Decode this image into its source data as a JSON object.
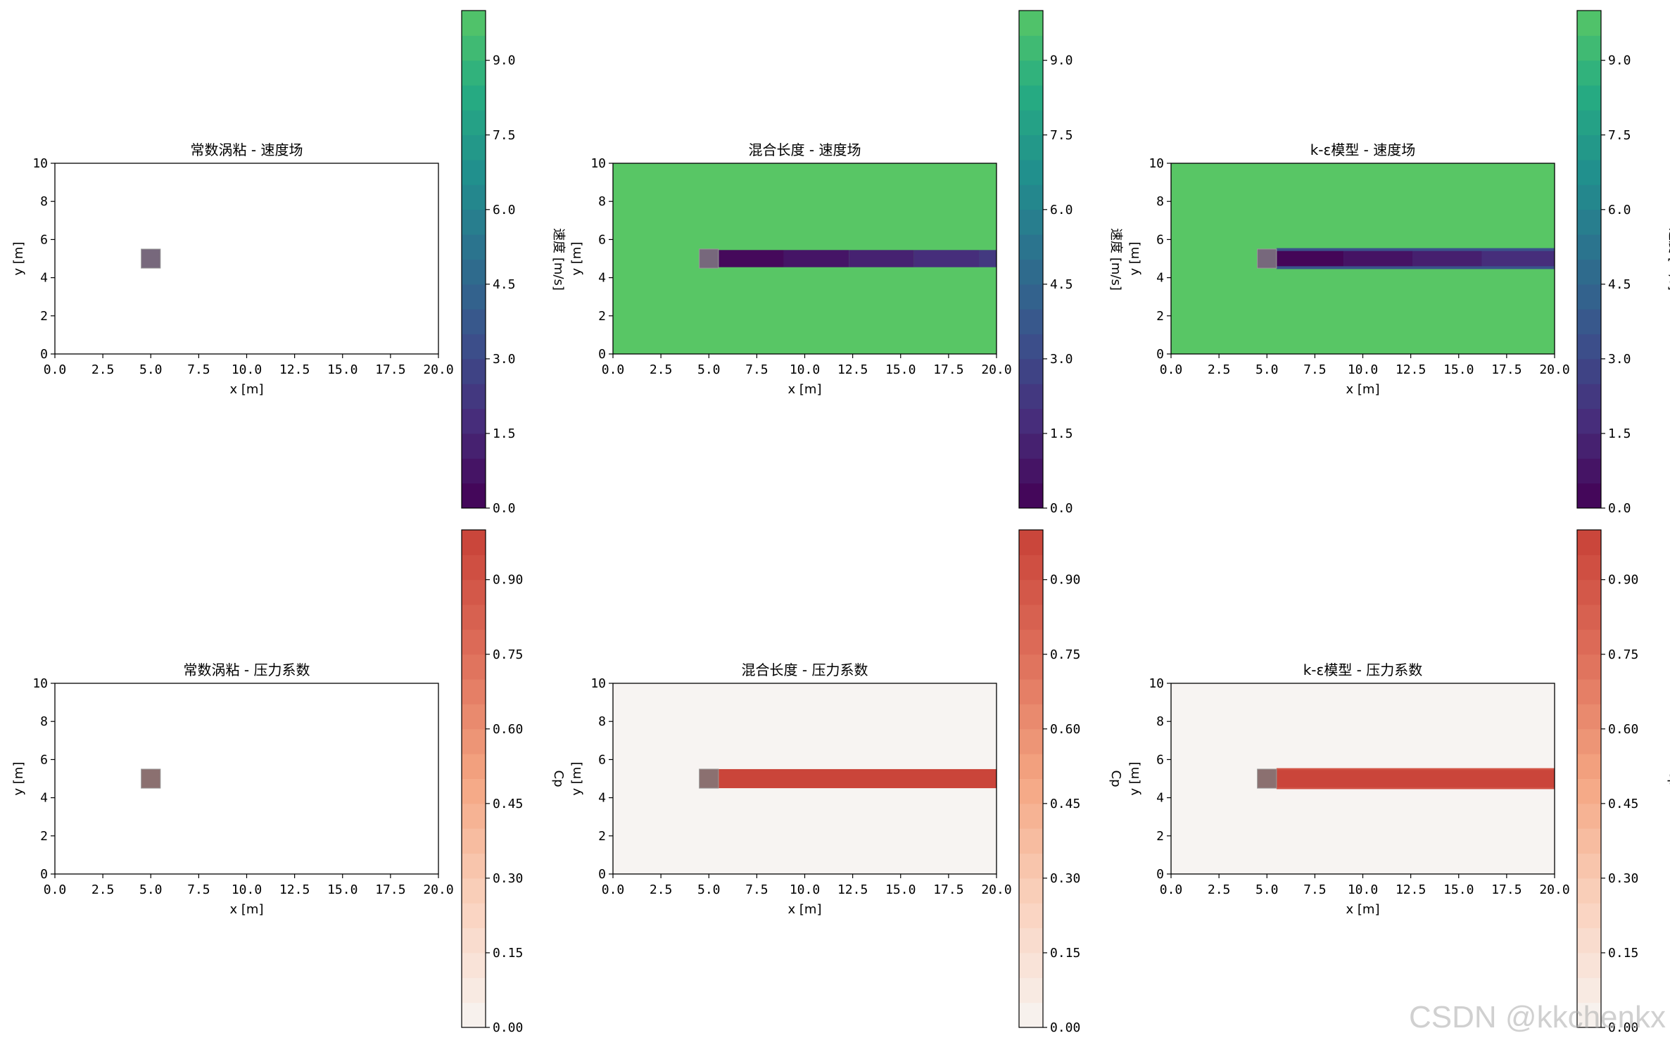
{
  "watermark": "CSDN @kkchenkx",
  "panels_meta": {
    "velocity_colorbar": {
      "label": "速度 [m/s]",
      "ticks": [
        "0.0",
        "1.5",
        "3.0",
        "4.5",
        "6.0",
        "7.5",
        "9.0"
      ],
      "range": [
        0,
        10
      ],
      "levels": 20,
      "colormap": "viridis"
    },
    "pressure_colorbar": {
      "label": "Cp",
      "ticks": [
        "0.00",
        "0.15",
        "0.30",
        "0.45",
        "0.60",
        "0.75",
        "0.90"
      ],
      "range": [
        0,
        1
      ],
      "levels": 20,
      "colormap": "reds"
    }
  },
  "chart_data": [
    {
      "type": "heatmap",
      "title": "常数涡粘 - 速度场",
      "xlabel": "x [m]",
      "ylabel": "y [m]",
      "xlim": [
        0,
        20
      ],
      "ylim": [
        0,
        10
      ],
      "xticks": [
        "0.0",
        "2.5",
        "5.0",
        "7.5",
        "10.0",
        "12.5",
        "15.0",
        "17.5",
        "20.0"
      ],
      "yticks": [
        "0",
        "2",
        "4",
        "6",
        "8",
        "10"
      ],
      "field": "velocity",
      "background_value": null,
      "obstacle": {
        "x": [
          4.5,
          5.5
        ],
        "y": [
          4.5,
          5.5
        ]
      },
      "wake": []
    },
    {
      "type": "heatmap",
      "title": "混合长度 - 速度场",
      "xlabel": "x [m]",
      "ylabel": "y [m]",
      "xlim": [
        0,
        20
      ],
      "ylim": [
        0,
        10
      ],
      "xticks": [
        "0.0",
        "2.5",
        "5.0",
        "7.5",
        "10.0",
        "12.5",
        "15.0",
        "17.5",
        "20.0"
      ],
      "yticks": [
        "0",
        "2",
        "4",
        "6",
        "8",
        "10"
      ],
      "field": "velocity",
      "background_value": 10,
      "obstacle": {
        "x": [
          4.5,
          5.5
        ],
        "y": [
          4.5,
          5.5
        ]
      },
      "wake": [
        {
          "x": [
            5.5,
            8.9
          ],
          "y": [
            4.55,
            5.45
          ],
          "value": 0.3
        },
        {
          "x": [
            8.9,
            12.3
          ],
          "y": [
            4.55,
            5.45
          ],
          "value": 0.8
        },
        {
          "x": [
            12.3,
            15.7
          ],
          "y": [
            4.55,
            5.45
          ],
          "value": 1.3
        },
        {
          "x": [
            15.7,
            19.1
          ],
          "y": [
            4.55,
            5.45
          ],
          "value": 1.8
        },
        {
          "x": [
            19.1,
            20
          ],
          "y": [
            4.55,
            5.45
          ],
          "value": 2.3
        }
      ]
    },
    {
      "type": "heatmap",
      "title": "k-ε模型 - 速度场",
      "xlabel": "x [m]",
      "ylabel": "y [m]",
      "xlim": [
        0,
        20
      ],
      "ylim": [
        0,
        10
      ],
      "xticks": [
        "0.0",
        "2.5",
        "5.0",
        "7.5",
        "10.0",
        "12.5",
        "15.0",
        "17.5",
        "20.0"
      ],
      "yticks": [
        "0",
        "2",
        "4",
        "6",
        "8",
        "10"
      ],
      "field": "velocity",
      "background_value": 10,
      "obstacle": {
        "x": [
          4.5,
          5.5
        ],
        "y": [
          4.5,
          5.5
        ]
      },
      "wake": [
        {
          "x": [
            5.5,
            20
          ],
          "y": [
            4.45,
            5.55
          ],
          "value": 3.5
        },
        {
          "x": [
            5.5,
            9.0
          ],
          "y": [
            4.6,
            5.4
          ],
          "value": 0.2
        },
        {
          "x": [
            9.0,
            12.6
          ],
          "y": [
            4.6,
            5.4
          ],
          "value": 0.7
        },
        {
          "x": [
            12.6,
            16.2
          ],
          "y": [
            4.6,
            5.4
          ],
          "value": 1.2
        },
        {
          "x": [
            16.2,
            20
          ],
          "y": [
            4.6,
            5.4
          ],
          "value": 1.8
        }
      ]
    },
    {
      "type": "heatmap",
      "title": "常数涡粘 - 压力系数",
      "xlabel": "x [m]",
      "ylabel": "y [m]",
      "xlim": [
        0,
        20
      ],
      "ylim": [
        0,
        10
      ],
      "xticks": [
        "0.0",
        "2.5",
        "5.0",
        "7.5",
        "10.0",
        "12.5",
        "15.0",
        "17.5",
        "20.0"
      ],
      "yticks": [
        "0",
        "2",
        "4",
        "6",
        "8",
        "10"
      ],
      "field": "pressure",
      "background_value": null,
      "obstacle": {
        "x": [
          4.5,
          5.5
        ],
        "y": [
          4.5,
          5.5
        ]
      },
      "wake": []
    },
    {
      "type": "heatmap",
      "title": "混合长度 - 压力系数",
      "xlabel": "x [m]",
      "ylabel": "y [m]",
      "xlim": [
        0,
        20
      ],
      "ylim": [
        0,
        10
      ],
      "xticks": [
        "0.0",
        "2.5",
        "5.0",
        "7.5",
        "10.0",
        "12.5",
        "15.0",
        "17.5",
        "20.0"
      ],
      "yticks": [
        "0",
        "2",
        "4",
        "6",
        "8",
        "10"
      ],
      "field": "pressure",
      "background_value": 0,
      "obstacle": {
        "x": [
          4.5,
          5.5
        ],
        "y": [
          4.5,
          5.5
        ]
      },
      "wake": [
        {
          "x": [
            5.5,
            20
          ],
          "y": [
            4.5,
            5.5
          ],
          "value": 0.98
        }
      ]
    },
    {
      "type": "heatmap",
      "title": "k-ε模型 - 压力系数",
      "xlabel": "x [m]",
      "ylabel": "y [m]",
      "xlim": [
        0,
        20
      ],
      "ylim": [
        0,
        10
      ],
      "xticks": [
        "0.0",
        "2.5",
        "5.0",
        "7.5",
        "10.0",
        "12.5",
        "15.0",
        "17.5",
        "20.0"
      ],
      "yticks": [
        "0",
        "2",
        "4",
        "6",
        "8",
        "10"
      ],
      "field": "pressure",
      "background_value": 0,
      "obstacle": {
        "x": [
          4.5,
          5.5
        ],
        "y": [
          4.5,
          5.5
        ]
      },
      "wake": [
        {
          "x": [
            5.5,
            20
          ],
          "y": [
            4.45,
            5.55
          ],
          "value": 0.9
        },
        {
          "x": [
            5.5,
            20
          ],
          "y": [
            4.55,
            5.45
          ],
          "value": 0.98
        }
      ]
    }
  ]
}
